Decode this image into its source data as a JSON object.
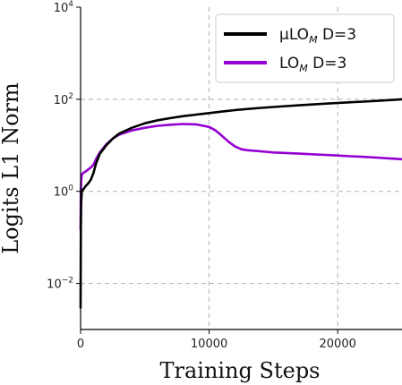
{
  "chart_data": {
    "type": "line",
    "xlabel": "Training Steps",
    "ylabel": "Logits L1 Norm",
    "xlim": [
      0,
      25000
    ],
    "ylim": [
      0.001,
      10000
    ],
    "yscale": "log",
    "grid": true,
    "legend_position": "top-right",
    "x_ticks": [
      0,
      10000,
      20000
    ],
    "x_tick_labels": [
      "0",
      "10000",
      "20000"
    ],
    "y_ticks": [
      0.01,
      1,
      100,
      10000
    ],
    "y_tick_labels": [
      {
        "base": "10",
        "exp": "−2"
      },
      {
        "base": "10",
        "exp": "0"
      },
      {
        "base": "10",
        "exp": "2"
      },
      {
        "base": "10",
        "exp": "4"
      }
    ],
    "series": [
      {
        "name": "μLO",
        "name_sub": "M",
        "name_suffix": " D=3",
        "color": "#000000",
        "x": [
          0,
          20,
          50,
          100,
          200,
          400,
          600,
          800,
          1000,
          1200,
          1500,
          2000,
          2500,
          3000,
          4000,
          5000,
          6000,
          7000,
          8000,
          9000,
          10000,
          11000,
          12000,
          13000,
          14000,
          15000,
          16000,
          17000,
          18000,
          19000,
          20000,
          21000,
          22000,
          23000,
          24000,
          25000
        ],
        "y": [
          0.003,
          0.15,
          0.6,
          1.0,
          1.1,
          1.3,
          1.5,
          1.8,
          2.5,
          4.0,
          6.5,
          10.0,
          14.0,
          18.0,
          24.0,
          30.0,
          35.0,
          39.0,
          43.0,
          46.5,
          50.0,
          54.0,
          58.0,
          61.5,
          65.0,
          68.0,
          71.0,
          74.0,
          77.0,
          80.0,
          83.0,
          86.0,
          89.0,
          92.0,
          96.0,
          100.0
        ]
      },
      {
        "name": "LO",
        "name_sub": "M",
        "name_suffix": " D=3",
        "color": "#9400D3",
        "x": [
          0,
          20,
          50,
          100,
          200,
          400,
          600,
          800,
          1000,
          1200,
          1500,
          2000,
          2500,
          3000,
          4000,
          5000,
          6000,
          7000,
          8000,
          9000,
          10000,
          10500,
          11000,
          11500,
          12000,
          12500,
          13000,
          14000,
          15000,
          16000,
          17000,
          18000,
          19000,
          20000,
          21000,
          22000,
          23000,
          24000,
          25000
        ],
        "y": [
          0.15,
          1.1,
          1.6,
          2.3,
          2.5,
          2.7,
          3.0,
          3.3,
          3.8,
          5.0,
          7.0,
          10.5,
          14.0,
          17.0,
          21.0,
          24.0,
          26.5,
          28.0,
          29.0,
          28.5,
          25.0,
          21.0,
          16.0,
          12.0,
          9.5,
          8.2,
          7.8,
          7.4,
          7.0,
          6.8,
          6.6,
          6.4,
          6.2,
          6.0,
          5.8,
          5.6,
          5.4,
          5.2,
          5.0
        ]
      }
    ]
  }
}
